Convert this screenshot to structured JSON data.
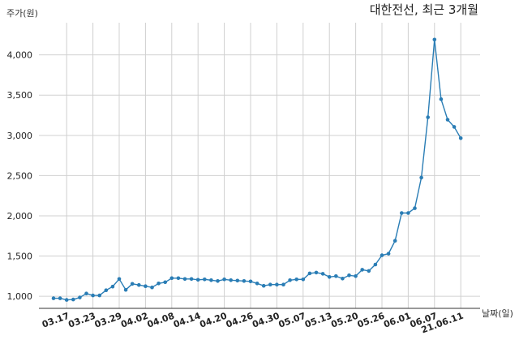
{
  "chart_data": {
    "type": "line",
    "title": "대한전선, 최근 3개월",
    "ylabel": "주가(원)",
    "xlabel": "날짜(일)",
    "ylim": [
      850,
      4400
    ],
    "yticks": [
      1000,
      1500,
      2000,
      2500,
      3000,
      3500,
      4000
    ],
    "ytick_labels": [
      "1,000",
      "1,500",
      "2,000",
      "2,500",
      "3,000",
      "3,500",
      "4,000"
    ],
    "grid": true,
    "line_color": "#2a7db5",
    "x_tick_labels": [
      "03.17",
      "03.23",
      "03.29",
      "04.02",
      "04.08",
      "04.14",
      "04.20",
      "04.26",
      "04.30",
      "05.07",
      "05.13",
      "05.20",
      "05.26",
      "06.01",
      "06.07",
      "21.06.11"
    ],
    "x_tick_index": [
      2,
      6,
      10,
      14,
      18,
      22,
      26,
      30,
      34,
      38,
      42,
      46,
      50,
      54,
      58,
      62
    ],
    "series": [
      {
        "values": [
          975,
          975,
          955,
          960,
          985,
          1035,
          1010,
          1010,
          1075,
          1120,
          1215,
          1080,
          1155,
          1140,
          1125,
          1110,
          1160,
          1175,
          1225,
          1225,
          1215,
          1215,
          1205,
          1210,
          1200,
          1190,
          1210,
          1200,
          1195,
          1190,
          1185,
          1160,
          1130,
          1145,
          1145,
          1145,
          1200,
          1210,
          1210,
          1285,
          1295,
          1280,
          1240,
          1250,
          1220,
          1260,
          1250,
          1330,
          1315,
          1395,
          1510,
          1530,
          1690,
          2035,
          2035,
          2095,
          2475,
          3225,
          4190,
          3450,
          3195,
          3105,
          2965
        ]
      }
    ]
  }
}
